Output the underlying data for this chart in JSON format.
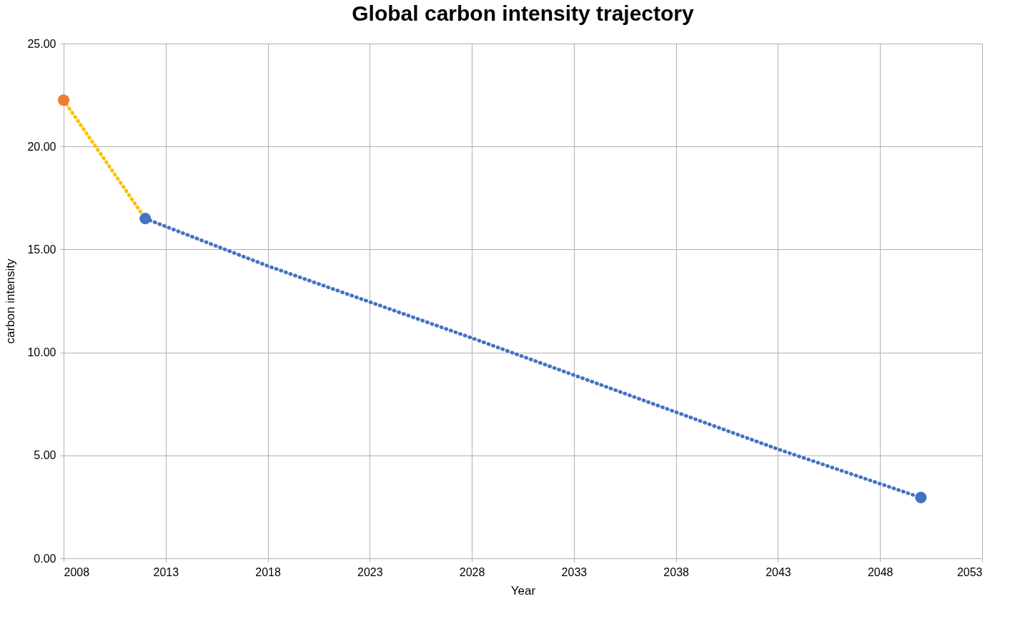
{
  "chart_data": {
    "type": "line",
    "title": "Global carbon intensity trajectory",
    "xlabel": "Year",
    "ylabel": "carbon intensity",
    "xlim": [
      2008,
      2053
    ],
    "xticks": [
      2008,
      2013,
      2018,
      2023,
      2028,
      2033,
      2038,
      2043,
      2048,
      2053
    ],
    "ylim": [
      0,
      25
    ],
    "yticks": [
      {
        "value": 0,
        "label": "0.00"
      },
      {
        "value": 5,
        "label": "5.00"
      },
      {
        "value": 10,
        "label": "10.00"
      },
      {
        "value": 15,
        "label": "15.00"
      },
      {
        "value": 20,
        "label": "20.00"
      },
      {
        "value": 25,
        "label": "25.00"
      }
    ],
    "grid": true,
    "series": [
      {
        "color": "#ffc000",
        "line_style": "dotted",
        "marker": "none",
        "x": [
          2008,
          2012
        ],
        "values": [
          22.25,
          16.5
        ]
      },
      {
        "color": "#4472c4",
        "line_style": "dotted",
        "marker": "none",
        "x": [
          2012,
          2018,
          2028,
          2038,
          2043,
          2050
        ],
        "values": [
          16.5,
          14.2,
          10.7,
          7.1,
          5.3,
          2.95
        ]
      },
      {
        "type": "scatter",
        "color": "#ed7d31",
        "marker": "circle",
        "x": [
          2008
        ],
        "values": [
          22.25
        ]
      },
      {
        "type": "scatter",
        "color": "#4472c4",
        "marker": "circle",
        "x": [
          2012,
          2050
        ],
        "values": [
          16.5,
          2.95
        ]
      }
    ]
  }
}
